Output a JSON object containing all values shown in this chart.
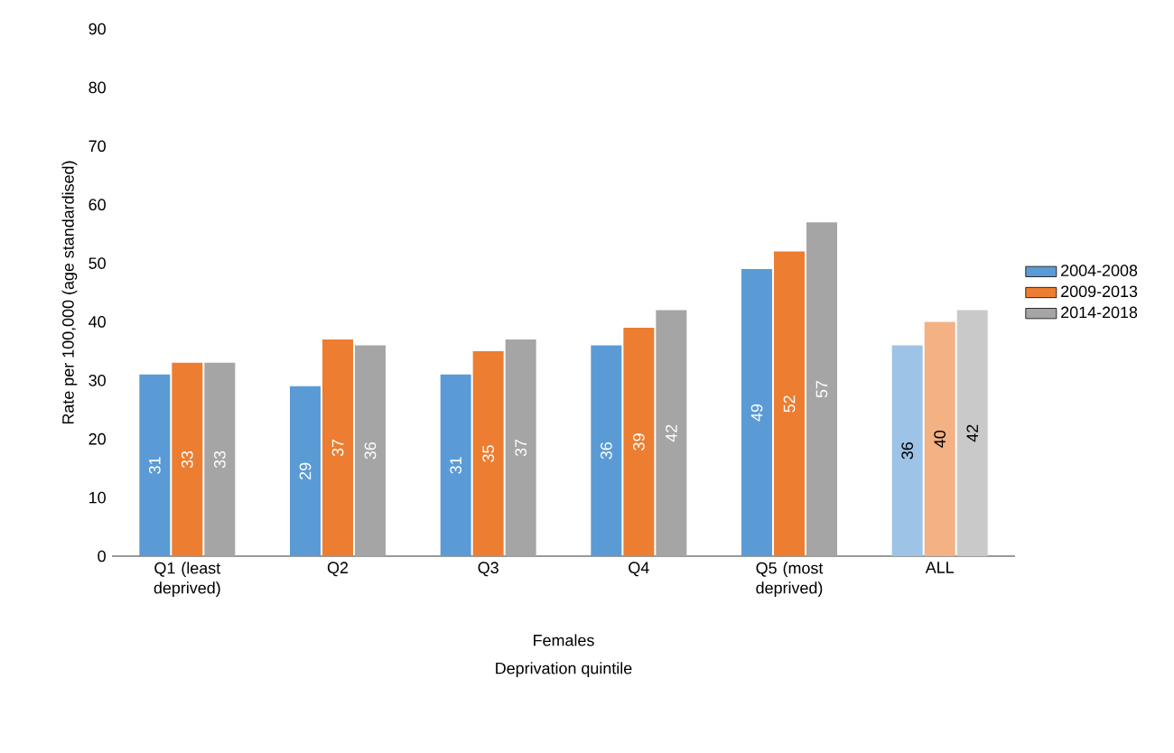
{
  "chart_data": {
    "type": "bar",
    "categories": [
      "Q1 (least deprived)",
      "Q2",
      "Q3",
      "Q4",
      "Q5 (most deprived)",
      "ALL"
    ],
    "series": [
      {
        "name": "2004-2008",
        "color": "#5b9bd5",
        "colors": [
          "#5b9bd5",
          "#5b9bd5",
          "#5b9bd5",
          "#5b9bd5",
          "#5b9bd5",
          "#9dc3e6"
        ],
        "values": [
          31,
          29,
          31,
          36,
          49,
          36
        ]
      },
      {
        "name": "2009-2013",
        "color": "#ed7d31",
        "colors": [
          "#ed7d31",
          "#ed7d31",
          "#ed7d31",
          "#ed7d31",
          "#ed7d31",
          "#f4b183"
        ],
        "values": [
          33,
          37,
          35,
          39,
          52,
          40
        ]
      },
      {
        "name": "2014-2018",
        "color": "#a5a5a5",
        "colors": [
          "#a5a5a5",
          "#a5a5a5",
          "#a5a5a5",
          "#a5a5a5",
          "#a5a5a5",
          "#c9c9c9"
        ],
        "values": [
          33,
          36,
          37,
          42,
          57,
          42
        ]
      }
    ],
    "ylabel": "Rate per 100,000 (age standardised)",
    "xlabel": "Deprivation quintile",
    "annotations": [
      "Females"
    ],
    "ylim": [
      0,
      90
    ],
    "yticks": [
      0,
      10,
      20,
      30,
      40,
      50,
      60,
      70,
      80,
      90
    ],
    "data_labels": true,
    "legend": "right",
    "grid": false
  }
}
